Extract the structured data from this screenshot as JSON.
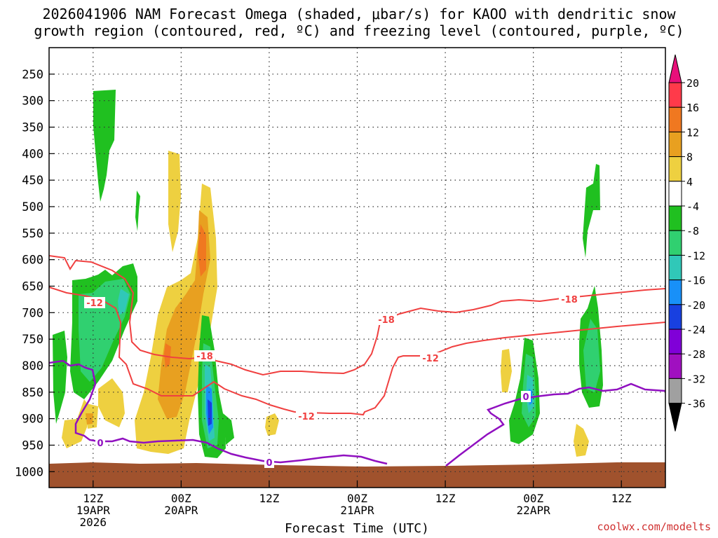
{
  "title": {
    "line1": "2026041906 NAM Forecast Omega (shaded, μbar/s) for KAOO with dendritic snow",
    "line2": "growth region (contoured, red, ºC) and freezing level (contoured, purple, ºC)"
  },
  "footer": {
    "watermark": "coolwx.com/modelts"
  },
  "chart_data": {
    "type": "heatmap",
    "xlabel": "Forecast Time (UTC)",
    "x_ticks": [
      {
        "hours": 6,
        "lines": [
          "12Z",
          "19APR",
          "2026"
        ]
      },
      {
        "hours": 18,
        "lines": [
          "00Z",
          "20APR"
        ]
      },
      {
        "hours": 30,
        "lines": [
          "12Z"
        ]
      },
      {
        "hours": 42,
        "lines": [
          "00Z",
          "21APR"
        ]
      },
      {
        "hours": 54,
        "lines": [
          "12Z"
        ]
      },
      {
        "hours": 66,
        "lines": [
          "00Z",
          "22APR"
        ]
      },
      {
        "hours": 78,
        "lines": [
          "12Z"
        ]
      }
    ],
    "x_range_hours": [
      0,
      84
    ],
    "y_ticks": [
      250,
      300,
      350,
      400,
      450,
      500,
      550,
      600,
      650,
      700,
      750,
      800,
      850,
      900,
      950,
      1000
    ],
    "y_range_hPa": [
      200,
      1030
    ],
    "grid": true,
    "colorbar": {
      "labels": [
        "20",
        "16",
        "12",
        "8",
        "4",
        "-4",
        "-8",
        "-12",
        "-16",
        "-20",
        "-24",
        "-28",
        "-32",
        "-36"
      ],
      "colors": [
        "#ff3a4a",
        "#f07820",
        "#e8a020",
        "#eed040",
        "#ffffff",
        "#20c020",
        "#30d070",
        "#30c8b8",
        "#1890f8",
        "#1840e0",
        "#8000d8",
        "#a010c0",
        "#a0a0a0"
      ],
      "top_color": "#e8107a",
      "bottom_color": "#000000"
    },
    "contour_labels": {
      "dgz_minus12": "-12",
      "dgz_minus18": "-18",
      "freezing": "0"
    },
    "colors": {
      "dgz": "#f04040",
      "freezing": "#9010c0",
      "ground": "#a0522d"
    }
  }
}
